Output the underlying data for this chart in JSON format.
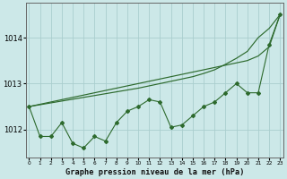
{
  "title": "Graphe pression niveau de la mer (hPa)",
  "xlabel_hours": [
    0,
    1,
    2,
    3,
    4,
    5,
    6,
    7,
    8,
    9,
    10,
    11,
    12,
    13,
    14,
    15,
    16,
    17,
    18,
    19,
    20,
    21,
    22,
    23
  ],
  "line_zigzag": [
    1012.5,
    1011.85,
    1011.85,
    1012.15,
    1011.7,
    1011.6,
    1011.85,
    1011.75,
    1012.15,
    1012.4,
    1012.5,
    1012.65,
    1012.6,
    1012.05,
    1012.1,
    1012.3,
    1012.5,
    1012.6,
    1012.8,
    1013.0,
    1012.8,
    1012.8,
    1013.85,
    1014.5
  ],
  "line_trend1": [
    1012.5,
    1012.55,
    1012.6,
    1012.65,
    1012.7,
    1012.75,
    1012.8,
    1012.85,
    1012.9,
    1012.95,
    1013.0,
    1013.05,
    1013.1,
    1013.15,
    1013.2,
    1013.25,
    1013.3,
    1013.35,
    1013.4,
    1013.45,
    1013.5,
    1013.6,
    1013.8,
    1014.5
  ],
  "line_trend2": [
    1012.5,
    1012.54,
    1012.58,
    1012.62,
    1012.66,
    1012.7,
    1012.74,
    1012.78,
    1012.82,
    1012.86,
    1012.9,
    1012.95,
    1013.0,
    1013.05,
    1013.1,
    1013.15,
    1013.22,
    1013.3,
    1013.42,
    1013.55,
    1013.7,
    1014.0,
    1014.2,
    1014.5
  ],
  "line_color": "#2d6a2d",
  "bg_color": "#cce8e8",
  "grid_color": "#aacece",
  "ylim": [
    1011.4,
    1014.75
  ],
  "yticks": [
    1012,
    1013,
    1014
  ],
  "xlim": [
    -0.3,
    23.3
  ]
}
